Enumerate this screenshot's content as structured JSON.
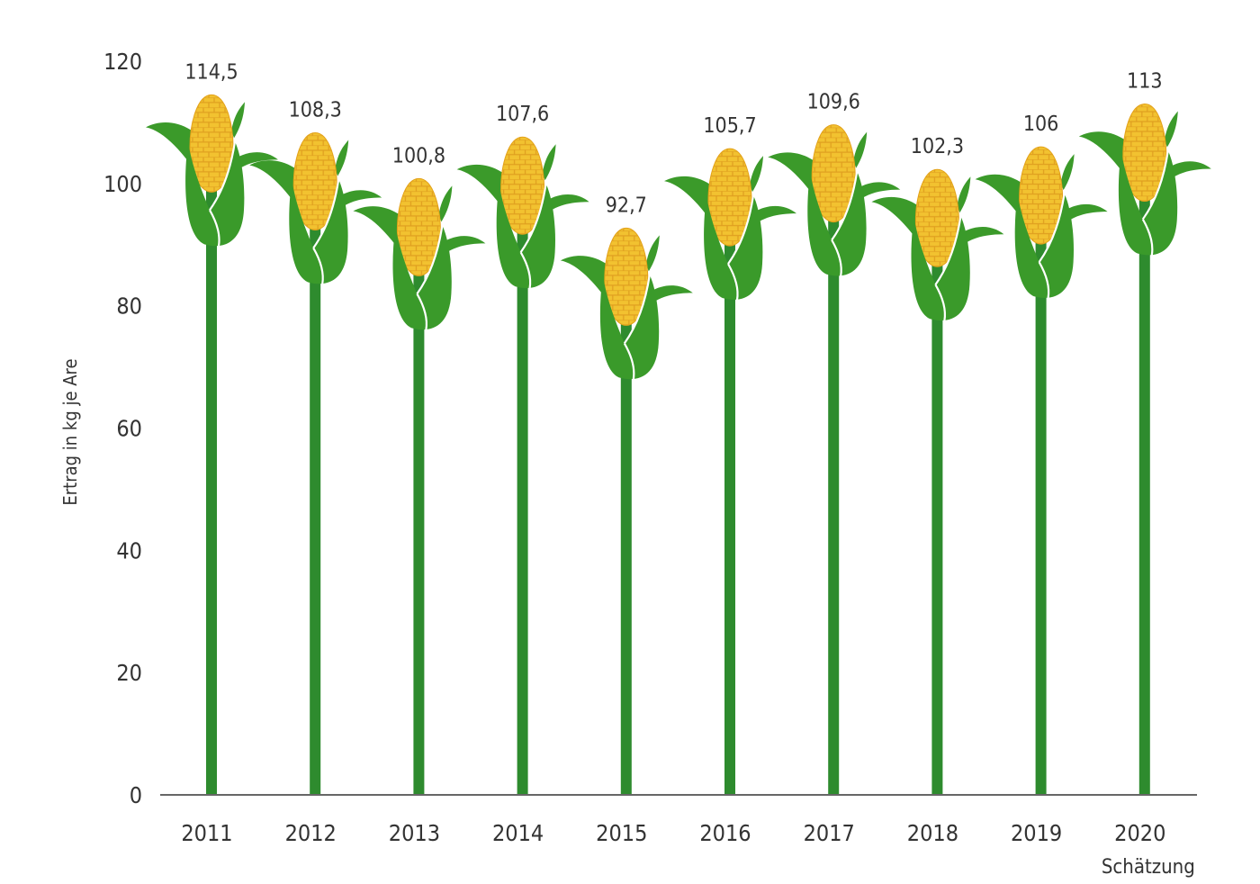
{
  "chart_data": {
    "type": "bar",
    "ylabel": "Ertrag in kg je Are",
    "xlabel": "",
    "ylim": [
      0,
      120
    ],
    "yticks": [
      0,
      20,
      40,
      60,
      80,
      100,
      120
    ],
    "categories": [
      "2011",
      "2012",
      "2013",
      "2014",
      "2015",
      "2016",
      "2017",
      "2018",
      "2019",
      "2020"
    ],
    "category_notes": [
      "",
      "",
      "",
      "",
      "",
      "",
      "",
      "",
      "",
      "Schätzung"
    ],
    "values": [
      114.5,
      108.3,
      100.8,
      107.6,
      92.7,
      105.7,
      109.6,
      102.3,
      106,
      113
    ],
    "value_labels": [
      "114,5",
      "108,3",
      "100,8",
      "107,6",
      "92,7",
      "105,7",
      "109,6",
      "102,3",
      "106",
      "113"
    ],
    "marker": "corn-cob-icon",
    "grid": false,
    "colors": {
      "stalk": "#2e8b2e",
      "husk": "#3a9a2a",
      "cob": "#f2c230",
      "cob_grid": "#e8a41a",
      "axis": "#666666"
    }
  }
}
